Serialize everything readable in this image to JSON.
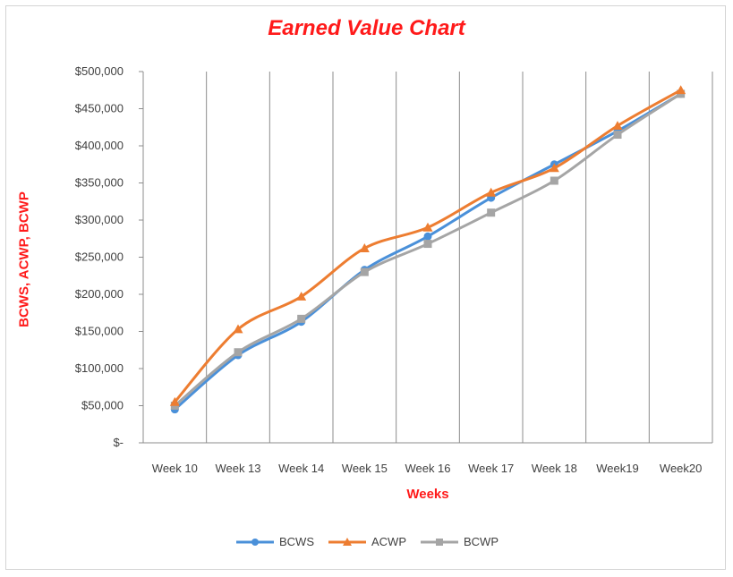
{
  "chart_data": {
    "type": "line",
    "title": "Earned Value Chart",
    "xlabel": "Weeks",
    "ylabel": "BCWS, ACWP, BCWP",
    "categories": [
      "Week 10",
      "Week 13",
      "Week 14",
      "Week 15",
      "Week 16",
      "Week 17",
      "Week 18",
      "Week19",
      "Week20"
    ],
    "y_ticks": [
      0,
      50000,
      100000,
      150000,
      200000,
      250000,
      300000,
      350000,
      400000,
      450000,
      500000
    ],
    "y_tick_labels": [
      "$-",
      "$50,000",
      "$100,000",
      "$150,000",
      "$200,000",
      "$250,000",
      "$300,000",
      "$350,000",
      "$400,000",
      "$450,000",
      "$500,000"
    ],
    "ylim": [
      0,
      500000
    ],
    "grid": "vertical",
    "legend_position": "bottom",
    "series": [
      {
        "name": "BCWS",
        "color": "#4a90d9",
        "marker": "circle",
        "values": [
          45000,
          118000,
          163000,
          233000,
          278000,
          330000,
          375000,
          420000,
          470000
        ]
      },
      {
        "name": "ACWP",
        "color": "#ed7d31",
        "marker": "triangle",
        "values": [
          55000,
          153000,
          197000,
          262000,
          290000,
          337000,
          370000,
          427000,
          475000
        ]
      },
      {
        "name": "BCWP",
        "color": "#a5a5a5",
        "marker": "square",
        "values": [
          50000,
          122000,
          167000,
          230000,
          268000,
          310000,
          353000,
          415000,
          470000
        ]
      }
    ]
  }
}
